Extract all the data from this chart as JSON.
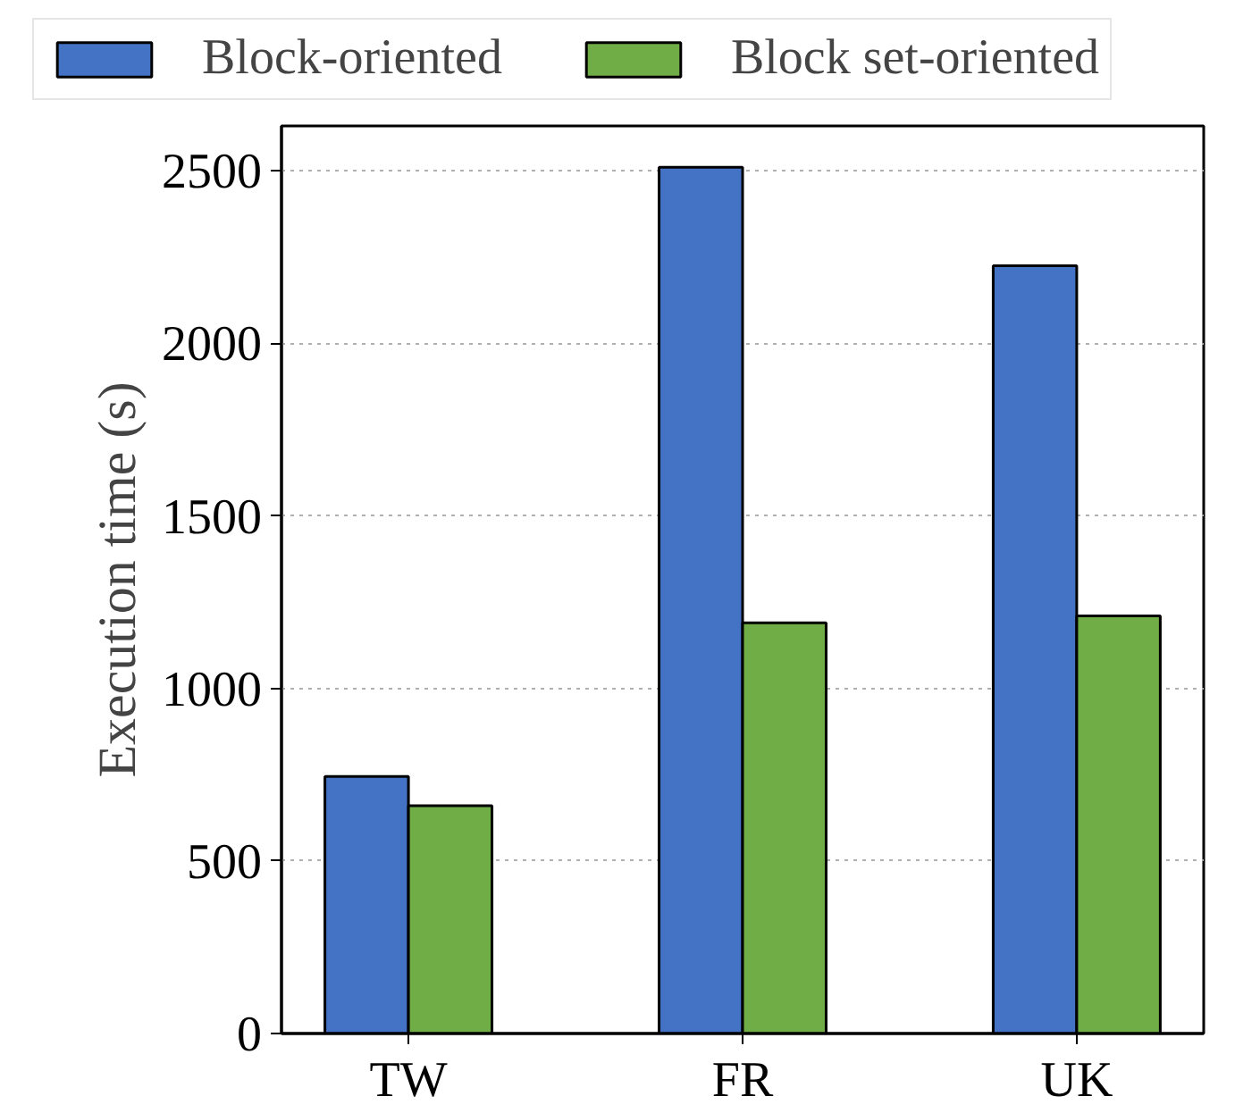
{
  "chart_data": {
    "type": "bar",
    "ylabel": "Execution time (s)",
    "categories": [
      "TW",
      "FR",
      "UK"
    ],
    "series": [
      {
        "name": "Block-oriented",
        "color": "#4472c4",
        "values": [
          745,
          2510,
          2225
        ]
      },
      {
        "name": "Block set-oriented",
        "color": "#70ad47",
        "values": [
          660,
          1190,
          1210
        ]
      }
    ],
    "ylim": [
      0,
      2630
    ],
    "yticks": [
      0,
      500,
      1000,
      1500,
      2000,
      2500
    ],
    "grid": "y",
    "legend": "top"
  }
}
